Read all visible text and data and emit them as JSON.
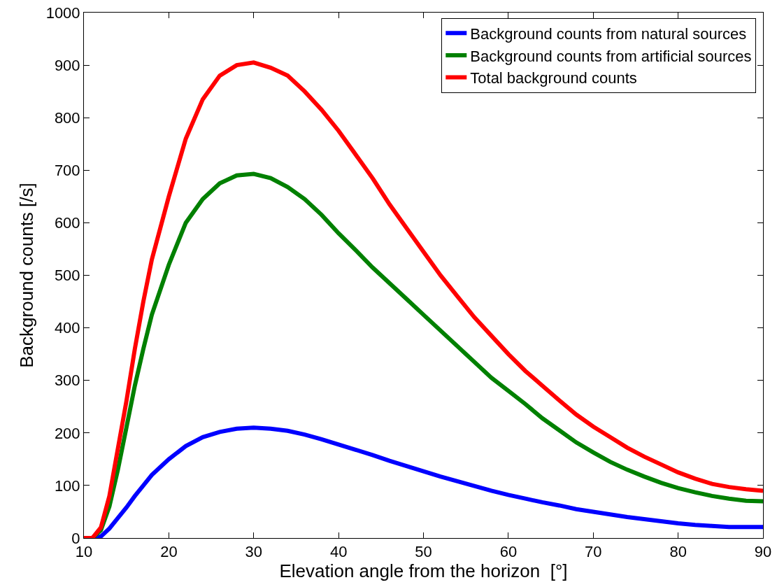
{
  "chart_data": {
    "type": "line",
    "xlabel": "Elevation angle from the horizon  [°]",
    "ylabel": "Background counts [/s]",
    "x": [
      10,
      11,
      12,
      13,
      14,
      15,
      16,
      17,
      18,
      20,
      22,
      24,
      26,
      28,
      30,
      32,
      34,
      36,
      38,
      40,
      42,
      44,
      46,
      48,
      50,
      52,
      54,
      56,
      58,
      60,
      62,
      64,
      66,
      68,
      70,
      72,
      74,
      76,
      78,
      80,
      82,
      84,
      86,
      88,
      90
    ],
    "series": [
      {
        "name": "Background counts from natural sources",
        "color": "#0000ff",
        "values": [
          0,
          0,
          3,
          18,
          38,
          58,
          80,
          100,
          120,
          150,
          175,
          192,
          202,
          208,
          210,
          208,
          204,
          197,
          188,
          178,
          168,
          158,
          147,
          137,
          127,
          117,
          108,
          99,
          90,
          82,
          75,
          68,
          62,
          55,
          50,
          45,
          40,
          36,
          32,
          28,
          25,
          23,
          21,
          21,
          21
        ]
      },
      {
        "name": "Background counts from artificial sources",
        "color": "#008000",
        "values": [
          0,
          0,
          15,
          60,
          130,
          210,
          290,
          360,
          425,
          520,
          600,
          645,
          675,
          690,
          693,
          685,
          668,
          645,
          615,
          580,
          548,
          515,
          485,
          455,
          425,
          395,
          365,
          335,
          305,
          280,
          255,
          228,
          205,
          182,
          163,
          145,
          130,
          117,
          105,
          95,
          87,
          80,
          75,
          71,
          70
        ]
      },
      {
        "name": "Total background counts",
        "color": "#ff0000",
        "values": [
          0,
          0,
          20,
          80,
          170,
          260,
          360,
          450,
          530,
          650,
          760,
          835,
          880,
          900,
          905,
          895,
          880,
          850,
          815,
          775,
          730,
          685,
          635,
          590,
          545,
          500,
          460,
          420,
          385,
          350,
          318,
          290,
          262,
          235,
          212,
          192,
          172,
          155,
          140,
          125,
          113,
          103,
          97,
          93,
          90
        ]
      }
    ],
    "xlim": [
      10,
      90
    ],
    "xticks": [
      10,
      20,
      30,
      40,
      50,
      60,
      70,
      80,
      90
    ],
    "ylim": [
      0,
      1000
    ],
    "yticks": [
      0,
      100,
      200,
      300,
      400,
      500,
      600,
      700,
      800,
      900,
      1000
    ],
    "grid": false,
    "legend": "top right",
    "marker": "none",
    "line_style": "solid"
  }
}
